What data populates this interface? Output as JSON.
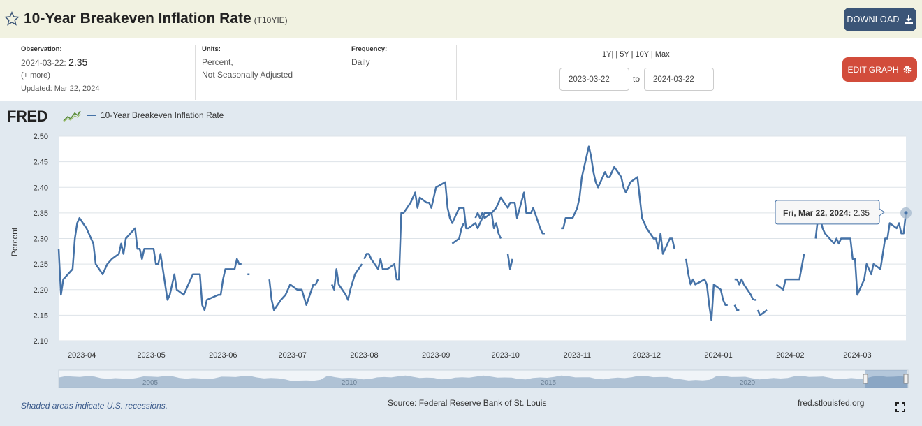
{
  "header": {
    "title": "10-Year Breakeven Inflation Rate",
    "series_id": "(T10YIE)",
    "download_label": "DOWNLOAD"
  },
  "meta": {
    "observation_label": "Observation:",
    "observation_date": "2024-03-22:",
    "observation_value": "2.35",
    "more": "(+ more)",
    "updated": "Updated: Mar 22, 2024",
    "units_label": "Units:",
    "units_line1": "Percent,",
    "units_line2": "Not Seasonally Adjusted",
    "frequency_label": "Frequency:",
    "frequency": "Daily",
    "ranges": "1Y| | 5Y | 10Y | Max",
    "date_from": "2023-03-22",
    "to": "to",
    "date_to": "2024-03-22",
    "edit_label": "EDIT GRAPH"
  },
  "graph": {
    "logo": "FRED",
    "legend": "10-Year Breakeven Inflation Rate",
    "recession_note": "Shaded areas indicate U.S. recessions.",
    "source": "Source: Federal Reserve Bank of St. Louis",
    "site": "fred.stlouisfed.org",
    "tooltip_date": "Fri, Mar 22, 2024:",
    "tooltip_value": "2.35"
  },
  "colors": {
    "line": "#4572a7",
    "plot_bg": "#ffffff",
    "graph_bg": "#e1e9f0"
  },
  "chart_data": {
    "type": "line",
    "ylabel": "Percent",
    "ylim": [
      2.1,
      2.5
    ],
    "yticks": [
      "2.10",
      "2.15",
      "2.20",
      "2.25",
      "2.30",
      "2.35",
      "2.40",
      "2.45",
      "2.50"
    ],
    "xticks": [
      "2023-04",
      "2023-05",
      "2023-06",
      "2023-07",
      "2023-08",
      "2023-09",
      "2023-10",
      "2023-11",
      "2023-12",
      "2024-01",
      "2024-02",
      "2024-03"
    ],
    "navigator_labels": [
      "2005",
      "2010",
      "2015",
      "2020"
    ],
    "grid": true,
    "series": [
      {
        "name": "10-Year Breakeven Inflation Rate",
        "segments": [
          [
            [
              "2023-03-22",
              2.28
            ],
            [
              "2023-03-23",
              2.19
            ],
            [
              "2023-03-24",
              2.22
            ],
            [
              "2023-03-28",
              2.24
            ],
            [
              "2023-03-29",
              2.3
            ],
            [
              "2023-03-30",
              2.33
            ],
            [
              "2023-03-31",
              2.34
            ],
            [
              "2023-04-03",
              2.32
            ],
            [
              "2023-04-06",
              2.29
            ],
            [
              "2023-04-07",
              2.25
            ],
            [
              "2023-04-10",
              2.23
            ],
            [
              "2023-04-12",
              2.25
            ],
            [
              "2023-04-14",
              2.26
            ],
            [
              "2023-04-17",
              2.27
            ],
            [
              "2023-04-18",
              2.29
            ],
            [
              "2023-04-19",
              2.27
            ],
            [
              "2023-04-20",
              2.3
            ],
            [
              "2023-04-24",
              2.32
            ],
            [
              "2023-04-25",
              2.28
            ],
            [
              "2023-04-26",
              2.28
            ],
            [
              "2023-04-27",
              2.26
            ],
            [
              "2023-04-28",
              2.28
            ],
            [
              "2023-05-02",
              2.28
            ],
            [
              "2023-05-03",
              2.25
            ],
            [
              "2023-05-04",
              2.25
            ],
            [
              "2023-05-05",
              2.27
            ],
            [
              "2023-05-08",
              2.18
            ],
            [
              "2023-05-09",
              2.19
            ],
            [
              "2023-05-11",
              2.23
            ],
            [
              "2023-05-12",
              2.2
            ],
            [
              "2023-05-15",
              2.19
            ],
            [
              "2023-05-17",
              2.21
            ],
            [
              "2023-05-19",
              2.23
            ],
            [
              "2023-05-22",
              2.23
            ],
            [
              "2023-05-23",
              2.17
            ],
            [
              "2023-05-24",
              2.16
            ],
            [
              "2023-05-25",
              2.18
            ],
            [
              "2023-05-30",
              2.19
            ],
            [
              "2023-05-31",
              2.19
            ],
            [
              "2023-06-01",
              2.22
            ],
            [
              "2023-06-02",
              2.24
            ],
            [
              "2023-06-05",
              2.24
            ],
            [
              "2023-06-06",
              2.24
            ],
            [
              "2023-06-07",
              2.26
            ],
            [
              "2023-06-08",
              2.25
            ],
            [
              "2023-06-09",
              2.25
            ]
          ],
          [
            [
              "2023-06-12",
              2.23
            ]
          ],
          [
            [
              "2023-06-21",
              2.22
            ],
            [
              "2023-06-22",
              2.18
            ],
            [
              "2023-06-23",
              2.16
            ],
            [
              "2023-06-26",
              2.18
            ],
            [
              "2023-06-28",
              2.19
            ],
            [
              "2023-06-30",
              2.21
            ],
            [
              "2023-07-03",
              2.2
            ],
            [
              "2023-07-05",
              2.2
            ],
            [
              "2023-07-07",
              2.17
            ],
            [
              "2023-07-10",
              2.21
            ],
            [
              "2023-07-11",
              2.21
            ],
            [
              "2023-07-12",
              2.22
            ]
          ],
          [
            [
              "2023-07-18",
              2.21
            ],
            [
              "2023-07-19",
              2.2
            ],
            [
              "2023-07-20",
              2.24
            ],
            [
              "2023-07-21",
              2.21
            ],
            [
              "2023-07-24",
              2.19
            ],
            [
              "2023-07-25",
              2.18
            ],
            [
              "2023-07-26",
              2.2
            ],
            [
              "2023-07-28",
              2.23
            ],
            [
              "2023-07-31",
              2.25
            ]
          ],
          [
            [
              "2023-08-01",
              2.26
            ],
            [
              "2023-08-02",
              2.27
            ],
            [
              "2023-08-03",
              2.27
            ],
            [
              "2023-08-04",
              2.26
            ],
            [
              "2023-08-07",
              2.24
            ],
            [
              "2023-08-08",
              2.26
            ],
            [
              "2023-08-09",
              2.24
            ],
            [
              "2023-08-10",
              2.24
            ],
            [
              "2023-08-11",
              2.24
            ],
            [
              "2023-08-14",
              2.25
            ],
            [
              "2023-08-15",
              2.22
            ],
            [
              "2023-08-16",
              2.22
            ],
            [
              "2023-08-17",
              2.35
            ],
            [
              "2023-08-18",
              2.35
            ],
            [
              "2023-08-21",
              2.37
            ],
            [
              "2023-08-23",
              2.39
            ],
            [
              "2023-08-24",
              2.36
            ],
            [
              "2023-08-25",
              2.38
            ],
            [
              "2023-08-28",
              2.37
            ],
            [
              "2023-08-29",
              2.37
            ],
            [
              "2023-08-30",
              2.36
            ],
            [
              "2023-08-31",
              2.38
            ],
            [
              "2023-09-01",
              2.4
            ],
            [
              "2023-09-05",
              2.41
            ],
            [
              "2023-09-06",
              2.36
            ],
            [
              "2023-09-07",
              2.34
            ],
            [
              "2023-09-08",
              2.33
            ],
            [
              "2023-09-11",
              2.36
            ],
            [
              "2023-09-12",
              2.36
            ],
            [
              "2023-09-13",
              2.36
            ],
            [
              "2023-09-14",
              2.32
            ],
            [
              "2023-09-15",
              2.32
            ],
            [
              "2023-09-18",
              2.33
            ],
            [
              "2023-09-19",
              2.32
            ],
            [
              "2023-09-20",
              2.33
            ],
            [
              "2023-09-21",
              2.34
            ],
            [
              "2023-09-22",
              2.35
            ],
            [
              "2023-09-25",
              2.35
            ],
            [
              "2023-09-26",
              2.32
            ],
            [
              "2023-09-27",
              2.33
            ],
            [
              "2023-09-28",
              2.31
            ],
            [
              "2023-09-29",
              2.3
            ]
          ],
          [
            [
              "2023-10-02",
              2.27
            ],
            [
              "2023-10-03",
              2.24
            ],
            [
              "2023-10-04",
              2.26
            ]
          ],
          [
            [
              "2023-09-08",
              2.29
            ],
            [
              "2023-09-11",
              2.3
            ],
            [
              "2023-09-12",
              2.32
            ],
            [
              "2023-09-13",
              2.33
            ]
          ],
          [
            [
              "2023-09-18",
              2.34
            ],
            [
              "2023-09-19",
              2.35
            ],
            [
              "2023-09-20",
              2.34
            ],
            [
              "2023-09-21",
              2.35
            ],
            [
              "2023-09-22",
              2.34
            ],
            [
              "2023-09-25",
              2.35
            ],
            [
              "2023-09-27",
              2.36
            ],
            [
              "2023-09-29",
              2.38
            ],
            [
              "2023-10-02",
              2.36
            ],
            [
              "2023-10-03",
              2.37
            ],
            [
              "2023-10-04",
              2.37
            ],
            [
              "2023-10-05",
              2.37
            ],
            [
              "2023-10-06",
              2.34
            ],
            [
              "2023-10-09",
              2.39
            ],
            [
              "2023-10-10",
              2.35
            ],
            [
              "2023-10-11",
              2.35
            ],
            [
              "2023-10-12",
              2.35
            ],
            [
              "2023-10-13",
              2.36
            ],
            [
              "2023-10-16",
              2.32
            ],
            [
              "2023-10-17",
              2.31
            ],
            [
              "2023-10-18",
              2.31
            ]
          ],
          [
            [
              "2023-10-25",
              2.32
            ],
            [
              "2023-10-26",
              2.32
            ],
            [
              "2023-10-27",
              2.34
            ],
            [
              "2023-10-30",
              2.34
            ],
            [
              "2023-11-01",
              2.36
            ],
            [
              "2023-11-02",
              2.38
            ],
            [
              "2023-11-03",
              2.42
            ],
            [
              "2023-11-06",
              2.48
            ],
            [
              "2023-11-07",
              2.46
            ],
            [
              "2023-11-08",
              2.43
            ],
            [
              "2023-11-09",
              2.41
            ],
            [
              "2023-11-10",
              2.4
            ],
            [
              "2023-11-13",
              2.43
            ],
            [
              "2023-11-14",
              2.42
            ],
            [
              "2023-11-15",
              2.42
            ],
            [
              "2023-11-16",
              2.43
            ],
            [
              "2023-11-17",
              2.44
            ],
            [
              "2023-11-20",
              2.42
            ],
            [
              "2023-11-21",
              2.4
            ],
            [
              "2023-11-22",
              2.39
            ],
            [
              "2023-11-24",
              2.41
            ],
            [
              "2023-11-27",
              2.42
            ],
            [
              "2023-11-28",
              2.38
            ],
            [
              "2023-11-29",
              2.34
            ],
            [
              "2023-11-30",
              2.33
            ],
            [
              "2023-12-01",
              2.32
            ],
            [
              "2023-12-04",
              2.3
            ],
            [
              "2023-12-05",
              2.3
            ],
            [
              "2023-12-06",
              2.28
            ],
            [
              "2023-12-07",
              2.31
            ],
            [
              "2023-12-08",
              2.27
            ],
            [
              "2023-12-11",
              2.3
            ],
            [
              "2023-12-12",
              2.3
            ],
            [
              "2023-12-13",
              2.28
            ]
          ],
          [
            [
              "2023-12-18",
              2.26
            ],
            [
              "2023-12-19",
              2.23
            ],
            [
              "2023-12-20",
              2.21
            ],
            [
              "2023-12-21",
              2.22
            ],
            [
              "2023-12-22",
              2.21
            ],
            [
              "2023-12-26",
              2.22
            ],
            [
              "2023-12-27",
              2.21
            ],
            [
              "2023-12-28",
              2.17
            ],
            [
              "2023-12-29",
              2.14
            ],
            [
              "2023-12-30",
              2.21
            ],
            [
              "2024-01-02",
              2.2
            ],
            [
              "2024-01-03",
              2.18
            ],
            [
              "2024-01-04",
              2.17
            ],
            [
              "2024-01-05",
              2.17
            ]
          ],
          [
            [
              "2024-01-08",
              2.17
            ],
            [
              "2024-01-09",
              2.16
            ],
            [
              "2024-01-10",
              2.16
            ]
          ],
          [
            [
              "2024-01-08",
              2.22
            ],
            [
              "2024-01-09",
              2.22
            ],
            [
              "2024-01-10",
              2.21
            ],
            [
              "2024-01-11",
              2.22
            ],
            [
              "2024-01-12",
              2.21
            ],
            [
              "2024-01-15",
              2.19
            ],
            [
              "2024-01-16",
              2.18
            ]
          ],
          [
            [
              "2024-01-17",
              2.18
            ]
          ],
          [
            [
              "2024-01-18",
              2.16
            ],
            [
              "2024-01-19",
              2.15
            ],
            [
              "2024-01-22",
              2.16
            ]
          ],
          [
            [
              "2024-01-26",
              2.21
            ],
            [
              "2024-01-29",
              2.2
            ],
            [
              "2024-01-30",
              2.22
            ],
            [
              "2024-02-01",
              2.22
            ],
            [
              "2024-02-05",
              2.22
            ],
            [
              "2024-02-07",
              2.27
            ]
          ],
          [
            [
              "2024-02-12",
              2.3
            ],
            [
              "2024-02-13",
              2.34
            ],
            [
              "2024-02-14",
              2.34
            ],
            [
              "2024-02-15",
              2.32
            ],
            [
              "2024-02-16",
              2.31
            ],
            [
              "2024-02-20",
              2.29
            ],
            [
              "2024-02-21",
              2.3
            ],
            [
              "2024-02-22",
              2.29
            ],
            [
              "2024-02-23",
              2.3
            ],
            [
              "2024-02-26",
              2.3
            ],
            [
              "2024-02-27",
              2.3
            ],
            [
              "2024-02-28",
              2.26
            ],
            [
              "2024-02-29",
              2.26
            ],
            [
              "2024-03-01",
              2.19
            ],
            [
              "2024-03-04",
              2.22
            ],
            [
              "2024-03-05",
              2.25
            ],
            [
              "2024-03-06",
              2.24
            ],
            [
              "2024-03-07",
              2.23
            ],
            [
              "2024-03-08",
              2.25
            ],
            [
              "2024-03-11",
              2.24
            ],
            [
              "2024-03-12",
              2.27
            ],
            [
              "2024-03-13",
              2.3
            ],
            [
              "2024-03-14",
              2.3
            ],
            [
              "2024-03-15",
              2.33
            ],
            [
              "2024-03-18",
              2.32
            ],
            [
              "2024-03-19",
              2.33
            ],
            [
              "2024-03-20",
              2.31
            ],
            [
              "2024-03-21",
              2.31
            ],
            [
              "2024-03-22",
              2.35
            ]
          ]
        ]
      }
    ]
  }
}
